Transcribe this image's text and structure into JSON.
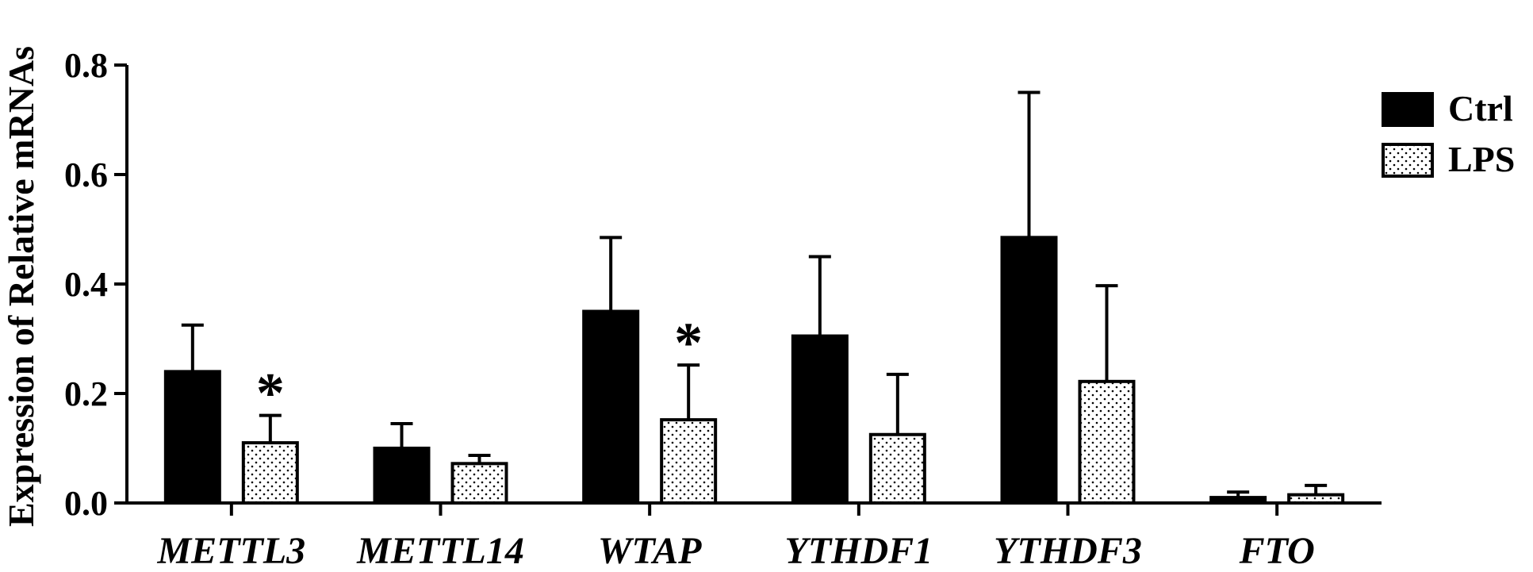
{
  "chart_data": {
    "type": "bar",
    "ylabel": "Expression of Relative mRNAs",
    "ylim": [
      0,
      0.8
    ],
    "yticks": [
      "0.0",
      "0.2",
      "0.4",
      "0.6",
      "0.8"
    ],
    "ytick_values": [
      0,
      0.2,
      0.4,
      0.6,
      0.8
    ],
    "categories": [
      "METTL3",
      "METTL14",
      "WTAP",
      "YTHDF1",
      "YTHDF3",
      "FTO"
    ],
    "series": [
      {
        "name": "Ctrl",
        "fill": "solid",
        "color": "#000000",
        "values": [
          0.24,
          0.1,
          0.35,
          0.305,
          0.485,
          0.01
        ],
        "errors": [
          0.085,
          0.045,
          0.135,
          0.145,
          0.265,
          0.01
        ]
      },
      {
        "name": "LPS",
        "fill": "dotted",
        "color": "#ffffff",
        "values": [
          0.11,
          0.072,
          0.152,
          0.125,
          0.222,
          0.015
        ],
        "errors": [
          0.05,
          0.015,
          0.1,
          0.11,
          0.175,
          0.017
        ]
      }
    ],
    "annotations": [
      {
        "category": "METTL3",
        "series": "LPS",
        "text": "*"
      },
      {
        "category": "WTAP",
        "series": "LPS",
        "text": "*"
      }
    ],
    "legend": "top-right",
    "grid": false
  }
}
